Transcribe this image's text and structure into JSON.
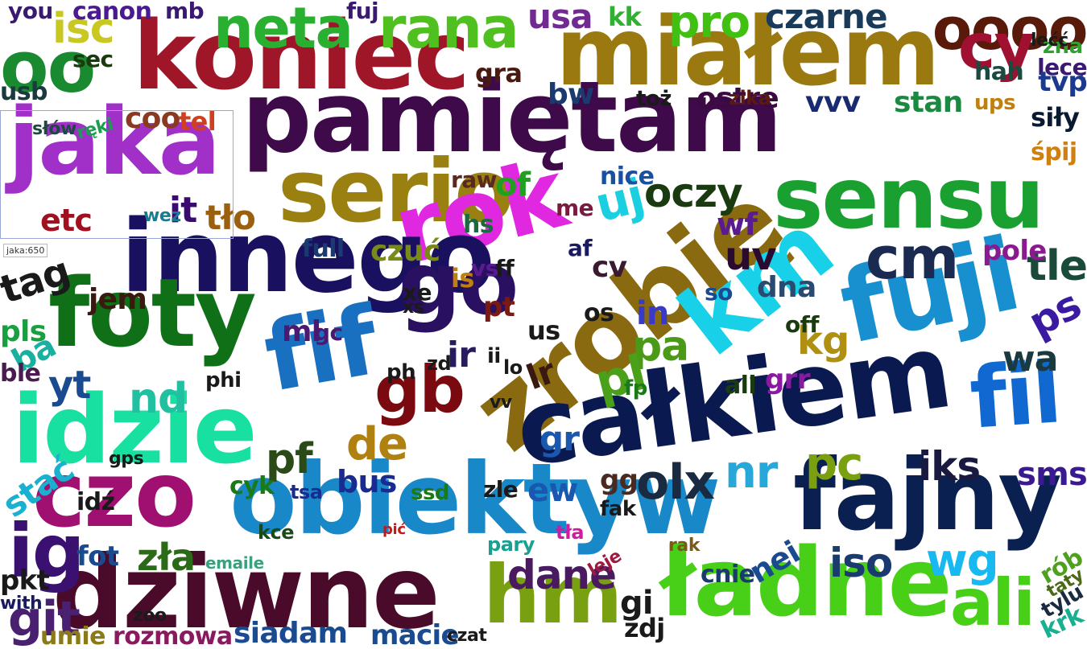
{
  "tooltip": "jaka:650",
  "words": [
    {
      "text": "koniec",
      "color": "#a01629"
    },
    {
      "text": "miałem",
      "color": "#9a7a10"
    },
    {
      "text": "pamiętam",
      "color": "#3e0a4a"
    },
    {
      "text": "oooo",
      "color": "#5a1a0a"
    },
    {
      "text": "jaka",
      "color": "#a030c8"
    },
    {
      "text": "sensu",
      "color": "#1aa030"
    },
    {
      "text": "serio",
      "color": "#9a8010"
    },
    {
      "text": "rok",
      "color": "#e028e0"
    },
    {
      "text": "innego",
      "color": "#1a1060"
    },
    {
      "text": "zrobię",
      "color": "#8a6a10"
    },
    {
      "text": "km",
      "color": "#18d0e8"
    },
    {
      "text": "fuji",
      "color": "#1890d0"
    },
    {
      "text": "foty",
      "color": "#107018"
    },
    {
      "text": "go",
      "color": "#2a1060"
    },
    {
      "text": "idzie",
      "color": "#18e0a0"
    },
    {
      "text": "fif",
      "color": "#1a70c0"
    },
    {
      "text": "całkiem",
      "color": "#0a1a50"
    },
    {
      "text": "fil",
      "color": "#1068d0"
    },
    {
      "text": "obiektyw",
      "color": "#1888c8"
    },
    {
      "text": "fajny",
      "color": "#0a2050"
    },
    {
      "text": "dziwne",
      "color": "#4a0a2a"
    },
    {
      "text": "czo",
      "color": "#a01070"
    },
    {
      "text": "ładne",
      "color": "#48d018"
    },
    {
      "text": "hm",
      "color": "#78a010"
    },
    {
      "text": "ali",
      "color": "#48d018"
    },
    {
      "text": "ig",
      "color": "#3a1070"
    },
    {
      "text": "git",
      "color": "#4a2070"
    },
    {
      "text": "neta",
      "color": "#2ab030"
    },
    {
      "text": "rana",
      "color": "#50c020"
    },
    {
      "text": "cy",
      "color": "#a01030"
    },
    {
      "text": "oo",
      "color": "#1a8a30"
    },
    {
      "text": "czarne",
      "color": "#1a3a5a"
    },
    {
      "text": "isc",
      "color": "#c8c820"
    },
    {
      "text": "lecę",
      "color": "#3a1a70"
    },
    {
      "text": "pro",
      "color": "#40c010"
    },
    {
      "text": "usa",
      "color": "#702a90"
    },
    {
      "text": "kk",
      "color": "#30b030"
    },
    {
      "text": "bw",
      "color": "#1a3a70"
    },
    {
      "text": "coo",
      "color": "#8a3a20"
    },
    {
      "text": "tel",
      "color": "#d04020"
    },
    {
      "text": "etc",
      "color": "#a01020"
    },
    {
      "text": "it",
      "color": "#3a0a70"
    },
    {
      "text": "tło",
      "color": "#9a6010"
    },
    {
      "text": "ostre",
      "color": "#3a0a40"
    },
    {
      "text": "vvv",
      "color": "#1a2a70"
    },
    {
      "text": "stan",
      "color": "#1a8a40"
    },
    {
      "text": "oczy",
      "color": "#1a3a10"
    },
    {
      "text": "uj",
      "color": "#1ad0e0"
    },
    {
      "text": "of",
      "color": "#20a020"
    },
    {
      "text": "nice",
      "color": "#1a50a0"
    },
    {
      "text": "raw",
      "color": "#5a2a20"
    },
    {
      "text": "cm",
      "color": "#1a2a50"
    },
    {
      "text": "uv",
      "color": "#2a0a30"
    },
    {
      "text": "tle",
      "color": "#1a4a3a"
    },
    {
      "text": "pole",
      "color": "#8a1a90"
    },
    {
      "text": "siły",
      "color": "#0a1a30"
    },
    {
      "text": "śpij",
      "color": "#d08010"
    },
    {
      "text": "ps",
      "color": "#3a1aa0"
    },
    {
      "text": "wa",
      "color": "#1a3a40"
    },
    {
      "text": "kg",
      "color": "#b09010"
    },
    {
      "text": "dna",
      "color": "#2a4a70"
    },
    {
      "text": "off",
      "color": "#1a3a10"
    },
    {
      "text": "pa",
      "color": "#4a9a18"
    },
    {
      "text": "in",
      "color": "#3a3ac8"
    },
    {
      "text": "wf",
      "color": "#5a1a90"
    },
    {
      "text": "gb",
      "color": "#7a0a10"
    },
    {
      "text": "ir",
      "color": "#2a1a60"
    },
    {
      "text": "pl",
      "color": "#4aa018"
    },
    {
      "text": "pf",
      "color": "#2a4a18"
    },
    {
      "text": "de",
      "color": "#b08010"
    },
    {
      "text": "bus",
      "color": "#1a2a90"
    },
    {
      "text": "olx",
      "color": "#1a2a40"
    },
    {
      "text": "nr",
      "color": "#28a8d8"
    },
    {
      "text": "pc",
      "color": "#7aa010"
    },
    {
      "text": "iks",
      "color": "#1a1a40"
    },
    {
      "text": "sms",
      "color": "#3a1a90"
    },
    {
      "text": "gr",
      "color": "#1a58b0"
    },
    {
      "text": "ew",
      "color": "#1a58b0"
    },
    {
      "text": "zle",
      "color": "#1a1a1a"
    },
    {
      "text": "gg",
      "color": "#4a2a20"
    },
    {
      "text": "dane",
      "color": "#4a1a60"
    },
    {
      "text": "iso",
      "color": "#1a3a70"
    },
    {
      "text": "wg",
      "color": "#18b8f0"
    },
    {
      "text": "nei",
      "color": "#1a4a90"
    },
    {
      "text": "cnie",
      "color": "#1a3a70"
    },
    {
      "text": "gi",
      "color": "#1a1a1a"
    },
    {
      "text": "zdj",
      "color": "#1a1a1a"
    },
    {
      "text": "zła",
      "color": "#2a6a18"
    },
    {
      "text": "fot",
      "color": "#1a4a90"
    },
    {
      "text": "idź",
      "color": "#1a1a1a"
    },
    {
      "text": "nd",
      "color": "#20c0a0"
    },
    {
      "text": "yt",
      "color": "#1a4a90"
    },
    {
      "text": "tag",
      "color": "#1a1a1a"
    },
    {
      "text": "jem",
      "color": "#3a1a10"
    },
    {
      "text": "ml",
      "color": "#4a1a70"
    },
    {
      "text": "gc",
      "color": "#4a1a70"
    },
    {
      "text": "czuć",
      "color": "#7a8a18"
    },
    {
      "text": "full",
      "color": "#1a3a70"
    },
    {
      "text": "pls",
      "color": "#18a040"
    },
    {
      "text": "ba",
      "color": "#1ab0a0"
    },
    {
      "text": "ble",
      "color": "#4a1a50"
    },
    {
      "text": "stać",
      "color": "#1ab0d0"
    },
    {
      "text": "pkt",
      "color": "#1a1a1a"
    },
    {
      "text": "umie",
      "color": "#8a7a18"
    },
    {
      "text": "rozmowa",
      "color": "#8a1a60"
    },
    {
      "text": "siadam",
      "color": "#1a4a90"
    },
    {
      "text": "macie",
      "color": "#1a4a90"
    },
    {
      "text": "czat",
      "color": "#1a1a1a"
    },
    {
      "text": "krk",
      "color": "#18b090"
    },
    {
      "text": "rób",
      "color": "#50a020"
    },
    {
      "text": "tylu",
      "color": "#1a2a40"
    },
    {
      "text": "taty",
      "color": "#4a6a18"
    },
    {
      "text": "hah",
      "color": "#1a4a40"
    },
    {
      "text": "zna",
      "color": "#30a030"
    },
    {
      "text": "tvp",
      "color": "#1a3a90"
    },
    {
      "text": "usb",
      "color": "#1a3a40"
    },
    {
      "text": "sec",
      "color": "#1a3a10"
    },
    {
      "text": "you",
      "color": "#3a1a70"
    },
    {
      "text": "canon",
      "color": "#4a1a90"
    },
    {
      "text": "lećć",
      "color": "#1a1a1a"
    },
    {
      "text": "mb",
      "color": "#3a1a70"
    },
    {
      "text": "fuj",
      "color": "#3a1a70"
    },
    {
      "text": "gra",
      "color": "#4a1a10"
    },
    {
      "text": "toż",
      "color": "#1a1a1a"
    },
    {
      "text": "zika",
      "color": "#5a1a10"
    },
    {
      "text": "ups",
      "color": "#c08010"
    },
    {
      "text": "słów",
      "color": "#1a4a40"
    },
    {
      "text": "ręki",
      "color": "#18a050"
    },
    {
      "text": "wez",
      "color": "#1a7a90"
    },
    {
      "text": "hs",
      "color": "#1a6a40"
    },
    {
      "text": "me",
      "color": "#7a1a40"
    },
    {
      "text": "xe",
      "color": "#1a1a1a"
    },
    {
      "text": "xs",
      "color": "#1a1a1a"
    },
    {
      "text": "pt",
      "color": "#7a1a10"
    },
    {
      "text": "os",
      "color": "#1a1a1a"
    },
    {
      "text": "af",
      "color": "#1a1a60"
    },
    {
      "text": "cv",
      "color": "#3a1a30"
    },
    {
      "text": "is",
      "color": "#c08010"
    },
    {
      "text": "vs",
      "color": "#5a1a90"
    },
    {
      "text": "ff",
      "color": "#1a1a1a"
    },
    {
      "text": "so",
      "color": "#1a4a90"
    },
    {
      "text": "us",
      "color": "#1a1a1a"
    },
    {
      "text": "lr",
      "color": "#3a1a10"
    },
    {
      "text": "ph",
      "color": "#1a1a1a"
    },
    {
      "text": "zd",
      "color": "#1a1a1a"
    },
    {
      "text": "fp",
      "color": "#1a7a18"
    },
    {
      "text": "all",
      "color": "#1a3a10"
    },
    {
      "text": "grr",
      "color": "#8a1aa0"
    },
    {
      "text": "ii",
      "color": "#1a1a1a"
    },
    {
      "text": "lo",
      "color": "#1a1a1a"
    },
    {
      "text": "vv",
      "color": "#1a1a1a"
    },
    {
      "text": "phi",
      "color": "#1a1a1a"
    },
    {
      "text": "kce",
      "color": "#1a4a18"
    },
    {
      "text": "pić",
      "color": "#c01a1a"
    },
    {
      "text": "tsa",
      "color": "#1a2a90"
    },
    {
      "text": "cyk",
      "color": "#1a7a18"
    },
    {
      "text": "ssd",
      "color": "#1a7a18"
    },
    {
      "text": "fak",
      "color": "#1a1a1a"
    },
    {
      "text": "tła",
      "color": "#d01aa0"
    },
    {
      "text": "rak",
      "color": "#7a5a18"
    },
    {
      "text": "leje",
      "color": "#a01a40"
    },
    {
      "text": "pary",
      "color": "#1aa090"
    },
    {
      "text": "emaile",
      "color": "#3aa080"
    },
    {
      "text": "gps",
      "color": "#1a1a1a"
    },
    {
      "text": "zoo",
      "color": "#1a1a1a"
    },
    {
      "text": "with",
      "color": "#1a1a60"
    }
  ]
}
